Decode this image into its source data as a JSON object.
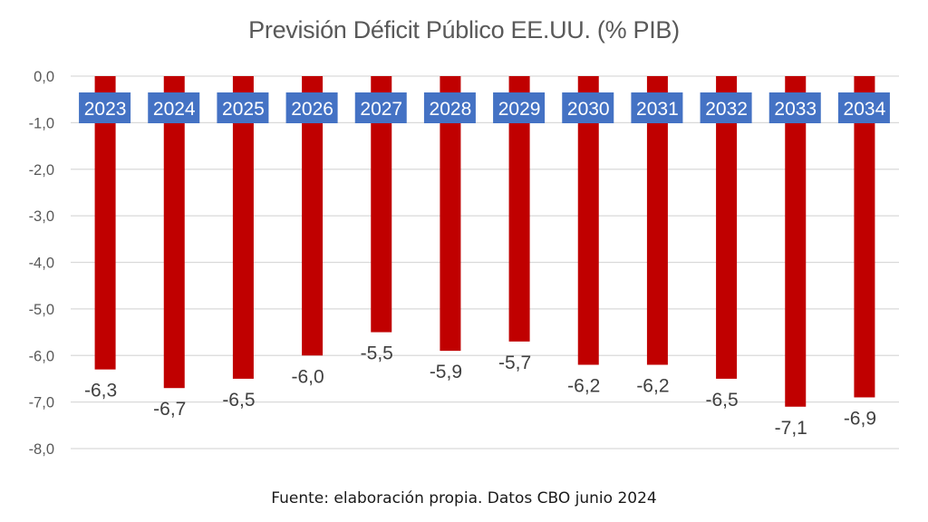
{
  "chart_data": {
    "type": "bar",
    "title": "Previsión Déficit Público EE.UU. (% PIB)",
    "xlabel": "",
    "ylabel": "",
    "categories": [
      "2023",
      "2024",
      "2025",
      "2026",
      "2027",
      "2028",
      "2029",
      "2030",
      "2031",
      "2032",
      "2033",
      "2034"
    ],
    "values": [
      -6.3,
      -6.7,
      -6.5,
      -6.0,
      -5.5,
      -5.9,
      -5.7,
      -6.2,
      -6.2,
      -6.5,
      -7.1,
      -6.9
    ],
    "value_labels": [
      "-6,3",
      "-6,7",
      "-6,5",
      "-6,0",
      "-5,5",
      "-5,9",
      "-5,7",
      "-6,2",
      "-6,2",
      "-6,5",
      "-7,1",
      "-6,9"
    ],
    "ylim": [
      -8,
      0
    ],
    "yticks": [
      0,
      -1,
      -2,
      -3,
      -4,
      -5,
      -6,
      -7,
      -8
    ],
    "ytick_labels": [
      "0,0",
      "-1,0",
      "-2,0",
      "-3,0",
      "-4,0",
      "-5,0",
      "-6,0",
      "-7,0",
      "-8,0"
    ],
    "grid": true,
    "legend": "none",
    "colors": {
      "bar": "#c00000",
      "category_label_bg": "#4472c4",
      "category_label_text": "#ffffff",
      "grid": "#d9d9d9",
      "tick_text": "#595959",
      "value_label_text": "#404040"
    }
  },
  "source": "Fuente: elaboración propia. Datos CBO junio 2024"
}
